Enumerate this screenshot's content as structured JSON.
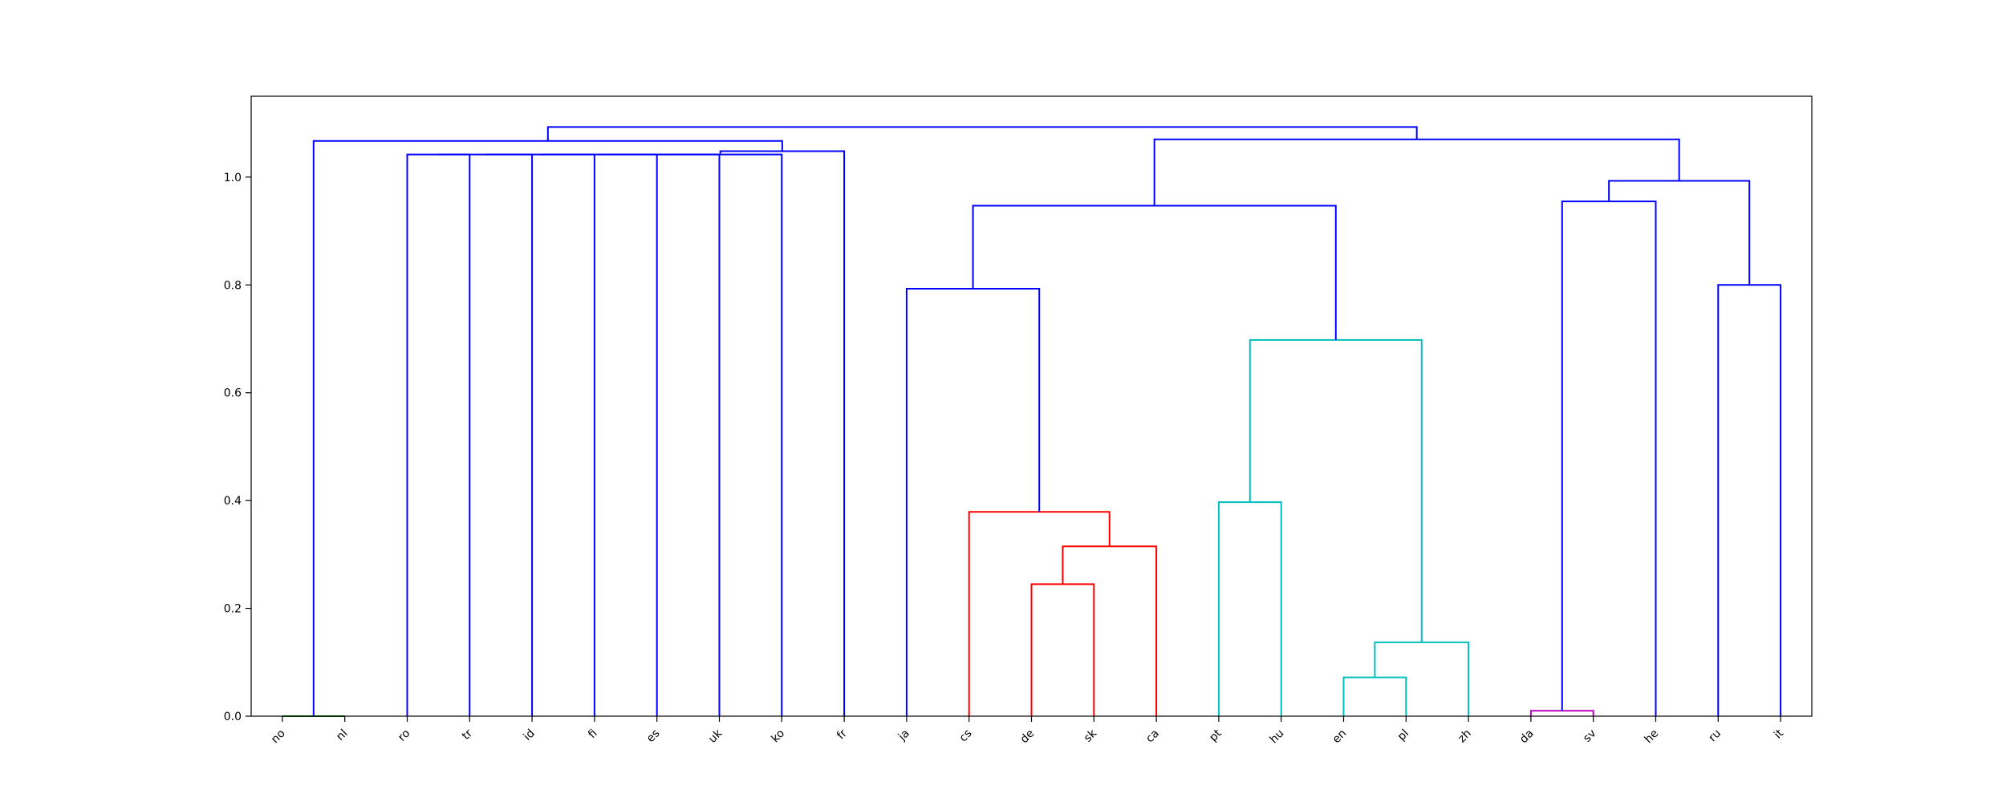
{
  "chart_data": {
    "type": "dendrogram",
    "title": "",
    "xlabel": "",
    "ylabel": "",
    "ylim": [
      0,
      1.15
    ],
    "yticks": [
      0.0,
      0.2,
      0.4,
      0.6,
      0.8,
      1.0
    ],
    "ytick_labels": [
      "0.0",
      "0.2",
      "0.4",
      "0.6",
      "0.8",
      "1.0"
    ],
    "grid": false,
    "legend": "none",
    "leaves": [
      "no",
      "nl",
      "ro",
      "tr",
      "id",
      "fi",
      "es",
      "uk",
      "ko",
      "fr",
      "ja",
      "cs",
      "de",
      "sk",
      "ca",
      "pt",
      "hu",
      "en",
      "pl",
      "zh",
      "da",
      "sv",
      "he",
      "ru",
      "it"
    ],
    "colors": {
      "blue": "#0000ff",
      "red": "#ff0000",
      "cyan": "#00bfbf",
      "green": "#008000",
      "magenta": "#bf00bf",
      "frame": "#000000"
    },
    "links": [
      {
        "left": "no",
        "right": "nl",
        "height": 0.0,
        "color": "green"
      },
      {
        "left": "da",
        "right": "sv",
        "height": 0.01,
        "color": "magenta"
      },
      {
        "left": "en",
        "right": "pl",
        "height": 0.072,
        "color": "cyan"
      },
      {
        "left": "en+pl",
        "right": "zh",
        "height": 0.137,
        "color": "cyan"
      },
      {
        "left": "de",
        "right": "sk",
        "height": 0.245,
        "color": "red"
      },
      {
        "left": "de+sk",
        "right": "ca",
        "height": 0.315,
        "color": "red"
      },
      {
        "left": "cs",
        "right": "de+sk+ca",
        "height": 0.379,
        "color": "red"
      },
      {
        "left": "pt",
        "right": "hu",
        "height": 0.397,
        "color": "cyan"
      },
      {
        "left": "pt+hu",
        "right": "en+pl+zh",
        "height": 0.698,
        "color": "cyan"
      },
      {
        "left": "ja",
        "right": "cs..ca",
        "height": 0.793,
        "color": "blue"
      },
      {
        "left": "ru",
        "right": "it",
        "height": 0.8,
        "color": "blue"
      },
      {
        "left": "ja..ca",
        "right": "pt..zh",
        "height": 0.947,
        "color": "blue"
      },
      {
        "left": "da+sv",
        "right": "he",
        "height": 0.955,
        "color": "blue"
      },
      {
        "left": "da+sv+he",
        "right": "ru+it",
        "height": 0.993,
        "color": "blue"
      },
      {
        "left": "ro",
        "right": "tr",
        "height": 1.042,
        "color": "blue"
      },
      {
        "left": "ro+tr",
        "right": "id",
        "height": 1.042,
        "color": "blue"
      },
      {
        "left": "ro..id",
        "right": "fi",
        "height": 1.042,
        "color": "blue"
      },
      {
        "left": "ro..fi",
        "right": "es",
        "height": 1.042,
        "color": "blue"
      },
      {
        "left": "ro..es",
        "right": "uk",
        "height": 1.042,
        "color": "blue"
      },
      {
        "left": "ro..uk",
        "right": "ko",
        "height": 1.042,
        "color": "blue"
      },
      {
        "left": "ro..ko",
        "right": "fr",
        "height": 1.048,
        "color": "blue"
      },
      {
        "left": "no+nl",
        "right": "ro..fr",
        "height": 1.067,
        "color": "blue"
      },
      {
        "left": "ja..zh",
        "right": "da..it",
        "height": 1.07,
        "color": "blue"
      },
      {
        "left": "no..fr",
        "right": "ja..it",
        "height": 1.093,
        "color": "blue"
      }
    ]
  }
}
